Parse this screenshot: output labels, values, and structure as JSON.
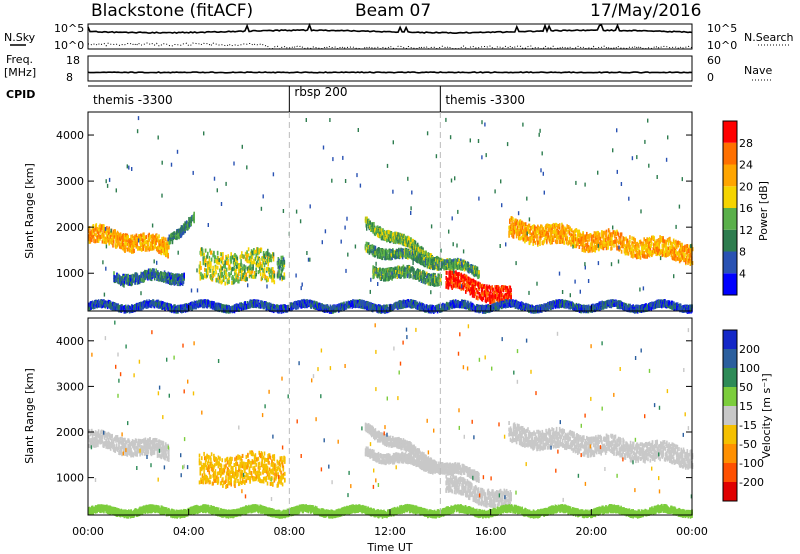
{
  "header": {
    "radar": "Blackstone (fitACF)",
    "beam": "Beam 07",
    "date": "17/May/2016"
  },
  "left_labels": {
    "nsky": "N.Sky",
    "freq": "Freq.",
    "freq_unit": "[MHz]",
    "cpid": "CPID"
  },
  "right_labels": {
    "nsearch": "N.Search",
    "nave": "Nave"
  },
  "noise_ticks": {
    "left_top": "10^5",
    "left_bottom": "10^0",
    "right_top": "10^5",
    "right_bottom": "10^0"
  },
  "freq_ticks": {
    "top": "18",
    "bottom": "8"
  },
  "nave_ticks": {
    "top": "60",
    "bottom": "0"
  },
  "cpid_segments": [
    {
      "label": "themis -3300",
      "start": 0,
      "end": 8
    },
    {
      "label": "rbsp 200",
      "start": 8,
      "end": 14
    },
    {
      "label": "themis -3300",
      "start": 14,
      "end": 24
    }
  ],
  "time_axis": {
    "label": "Time UT",
    "ticks": [
      {
        "value": 0,
        "label": "00:00"
      },
      {
        "value": 4,
        "label": "04:00"
      },
      {
        "value": 8,
        "label": "08:00"
      },
      {
        "value": 12,
        "label": "12:00"
      },
      {
        "value": 16,
        "label": "16:00"
      },
      {
        "value": 20,
        "label": "20:00"
      },
      {
        "value": 24,
        "label": "00:00"
      }
    ]
  },
  "range_axis": {
    "label": "Slant Range [km]",
    "ticks": [
      {
        "value": 1000,
        "label": "1000"
      },
      {
        "value": 2000,
        "label": "2000"
      },
      {
        "value": 3000,
        "label": "3000"
      },
      {
        "value": 4000,
        "label": "4000"
      }
    ]
  },
  "power_scale": {
    "label": "Power [dB]",
    "ticks": [
      "4",
      "8",
      "12",
      "16",
      "20",
      "24",
      "28"
    ],
    "colors": [
      "#0000ff",
      "#2952b3",
      "#2e7d4f",
      "#5ab04a",
      "#f5d400",
      "#ffa500",
      "#ff7000",
      "#ff0000"
    ]
  },
  "velocity_scale": {
    "label": "Velocity [m s⁻¹]",
    "ticks": [
      "200",
      "100",
      "50",
      "15",
      "-15",
      "-50",
      "-100",
      "-200"
    ],
    "colors": [
      "#1428c8",
      "#2b5f9e",
      "#2e8b57",
      "#7ccd3c",
      "#c8c8c8",
      "#f5c000",
      "#ff9000",
      "#ff5000",
      "#e00000"
    ]
  },
  "chart_data": {
    "type": "heatmap",
    "x_range_hours": [
      0,
      24
    ],
    "y_range_km": [
      180,
      4500
    ],
    "boundaries_hours": [
      8,
      14
    ],
    "power_bands": [
      {
        "t0": 0.0,
        "t1": 3.2,
        "r0": 1850,
        "r1": 1550,
        "w": 350,
        "power": 22
      },
      {
        "t0": 3.2,
        "t1": 4.2,
        "r0": 1750,
        "r1": 2200,
        "w": 180,
        "power": 10
      },
      {
        "t0": 4.4,
        "t1": 7.4,
        "r0": 1150,
        "r1": 1150,
        "w": 650,
        "power": 16
      },
      {
        "t0": 7.5,
        "t1": 7.8,
        "r0": 1200,
        "r1": 1150,
        "w": 500,
        "power": 12
      },
      {
        "t0": 1.0,
        "t1": 3.8,
        "r0": 900,
        "r1": 920,
        "w": 200,
        "power": 8
      },
      {
        "t0": 11.0,
        "t1": 14.5,
        "r0": 2100,
        "r1": 1100,
        "w": 200,
        "power": 14
      },
      {
        "t0": 11.0,
        "t1": 15.5,
        "r0": 1550,
        "r1": 1050,
        "w": 180,
        "power": 12
      },
      {
        "t0": 11.3,
        "t1": 14.0,
        "r0": 1050,
        "r1": 900,
        "w": 220,
        "power": 12
      },
      {
        "t0": 14.2,
        "t1": 16.8,
        "r0": 850,
        "r1": 450,
        "w": 350,
        "power": 30
      },
      {
        "t0": 16.7,
        "t1": 24.0,
        "r0": 1950,
        "r1": 1450,
        "w": 400,
        "power": 22
      },
      {
        "t0": 0.0,
        "t1": 24.0,
        "r0": 280,
        "r1": 280,
        "w": 120,
        "power": 6
      }
    ],
    "velocity_bands": [
      {
        "t0": 0.0,
        "t1": 3.2,
        "r0": 1850,
        "r1": 1550,
        "w": 350,
        "velocity": 0
      },
      {
        "t0": 4.4,
        "t1": 7.8,
        "r0": 1150,
        "r1": 1200,
        "w": 650,
        "velocity": -40
      },
      {
        "t0": 11.0,
        "t1": 14.5,
        "r0": 2100,
        "r1": 1100,
        "w": 200,
        "velocity": 0
      },
      {
        "t0": 11.0,
        "t1": 15.5,
        "r0": 1550,
        "r1": 1050,
        "w": 180,
        "velocity": 0
      },
      {
        "t0": 14.2,
        "t1": 16.8,
        "r0": 850,
        "r1": 450,
        "w": 350,
        "velocity": 0
      },
      {
        "t0": 16.7,
        "t1": 24.0,
        "r0": 1950,
        "r1": 1450,
        "w": 400,
        "velocity": 0
      },
      {
        "t0": 0.0,
        "t1": 24.0,
        "r0": 260,
        "r1": 260,
        "w": 120,
        "velocity": 30
      }
    ]
  }
}
